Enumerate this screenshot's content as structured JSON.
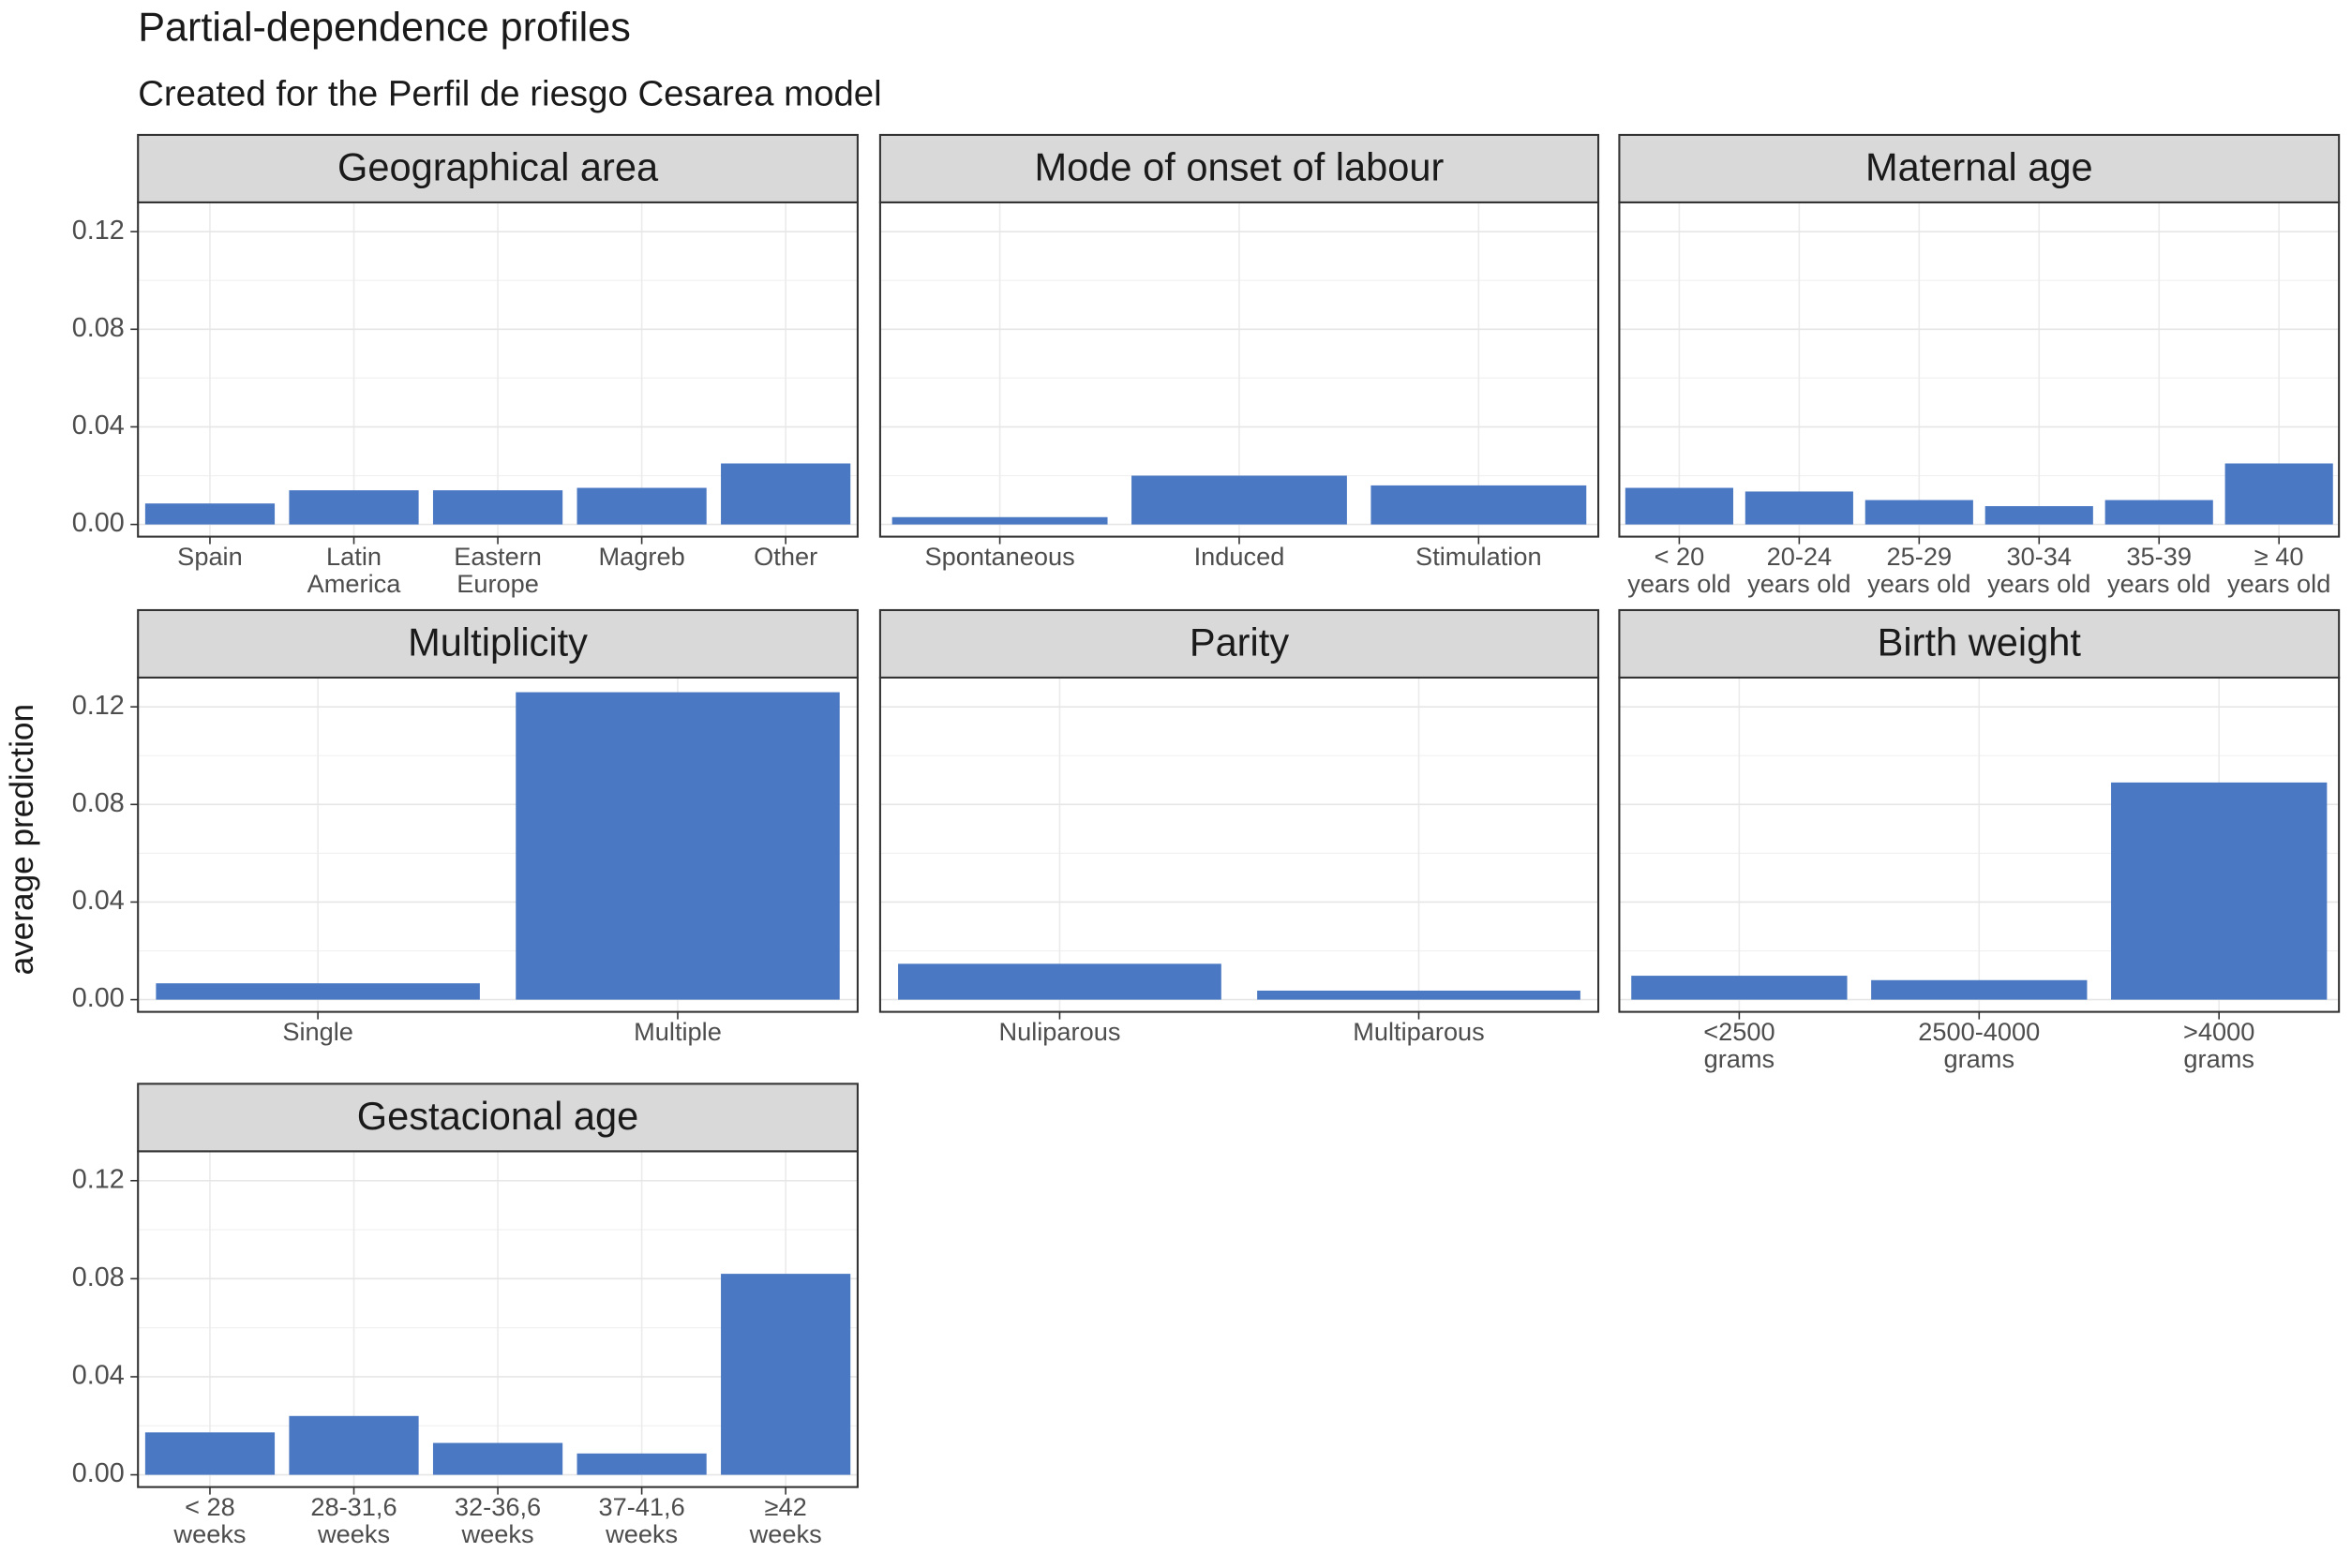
{
  "title": "Partial-dependence profiles",
  "subtitle": "Created for the Perfil de riesgo Cesarea model",
  "y_label": "average prediction",
  "chart_data": [
    {
      "type": "bar",
      "title": "Geographical area",
      "categories": [
        "Spain",
        "Latin\nAmerica",
        "Eastern\nEurope",
        "Magreb",
        "Other"
      ],
      "values": [
        0.0086,
        0.014,
        0.014,
        0.015,
        0.025
      ],
      "color": "#4a78c2",
      "ylim": [
        -0.005,
        0.132
      ],
      "yticks": [
        {
          "value": 0,
          "label": "0.00"
        },
        0.04,
        0.08,
        0.12
      ],
      "grid": true
    },
    {
      "type": "bar",
      "title": "Mode of onset of labour",
      "categories": [
        "Spontaneous",
        "Induced",
        "Stimulation"
      ],
      "values": [
        0.003,
        0.02,
        0.016
      ],
      "color": "#4a78c2",
      "ylim": [
        -0.005,
        0.132
      ],
      "yticks": [
        {
          "value": 0,
          "label": "0.00"
        },
        0.04,
        0.08,
        0.12
      ],
      "grid": true
    },
    {
      "type": "bar",
      "title": "Maternal age",
      "categories": [
        "< 20\nyears old",
        "20-24\nyears old",
        "25-29\nyears old",
        "30-34\nyears old",
        "35-39\nyears old",
        "≥ 40\nyears old"
      ],
      "values": [
        0.015,
        0.0135,
        0.01,
        0.0075,
        0.01,
        0.025
      ],
      "color": "#4a78c2",
      "ylim": [
        -0.005,
        0.132
      ],
      "yticks": [
        {
          "value": 0,
          "label": "0.00"
        },
        0.04,
        0.08,
        0.12
      ],
      "grid": true
    },
    {
      "type": "bar",
      "title": "Multiplicity",
      "categories": [
        "Single",
        "Multiple"
      ],
      "values": [
        0.0067,
        0.126
      ],
      "color": "#4a78c2",
      "ylim": [
        -0.005,
        0.132
      ],
      "yticks": [
        {
          "value": 0,
          "label": "0.00"
        },
        0.04,
        0.08,
        0.12
      ],
      "grid": true
    },
    {
      "type": "bar",
      "title": "Parity",
      "categories": [
        "Nuliparous",
        "Multiparous"
      ],
      "values": [
        0.0147,
        0.0037
      ],
      "color": "#4a78c2",
      "ylim": [
        -0.005,
        0.132
      ],
      "yticks": [
        {
          "value": 0,
          "label": "0.00"
        },
        0.04,
        0.08,
        0.12
      ],
      "grid": true
    },
    {
      "type": "bar",
      "title": "Birth weight",
      "categories": [
        "<2500\ngrams",
        "2500-4000\ngrams",
        ">4000\ngrams"
      ],
      "values": [
        0.0098,
        0.008,
        0.089
      ],
      "color": "#4a78c2",
      "ylim": [
        -0.005,
        0.132
      ],
      "yticks": [
        {
          "value": 0,
          "label": "0.00"
        },
        0.04,
        0.08,
        0.12
      ],
      "grid": true
    },
    {
      "type": "bar",
      "title": "Gestacional age",
      "categories": [
        "< 28\nweeks",
        "28-31,6\nweeks",
        "32-36,6\nweeks",
        "37-41,6\nweeks",
        "≥42\nweeks"
      ],
      "values": [
        0.0173,
        0.024,
        0.013,
        0.0087,
        0.082
      ],
      "color": "#4a78c2",
      "ylim": [
        -0.005,
        0.132
      ],
      "yticks": [
        {
          "value": 0,
          "label": "0.00"
        },
        0.04,
        0.08,
        0.12
      ],
      "grid": true
    }
  ]
}
